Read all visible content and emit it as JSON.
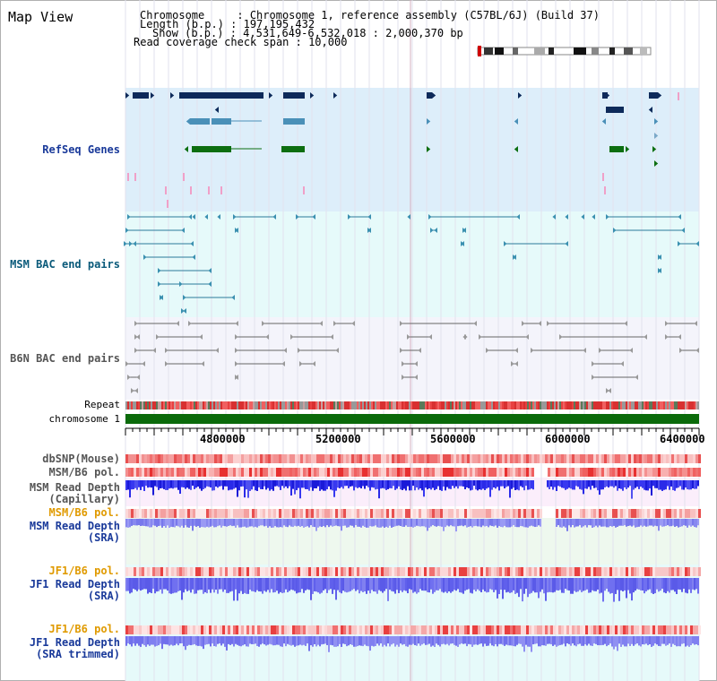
{
  "title": "Map View",
  "info": {
    "line1": "Chromosome     : Chromosome 1, reference assembly (C57BL/6J) (Build 37)",
    "line2": "Length (b.p.) : 197,195,432",
    "line3": "Show (b.p.) : 4,531,649-6,532,018 : 2,000,370 bp",
    "line4": "Read coverage check span : 10,000"
  },
  "tracks": {
    "refseq": "RefSeq Genes",
    "msm_bac": "MSM BAC end pairs",
    "b6n_bac": "B6N BAC end pairs",
    "repeat": "Repeat",
    "chromosome": "chromosome 1",
    "dbsnp": "dbSNP(Mouse)",
    "msm_pol1": "MSM/B6 pol.",
    "msm_depth_cap_1": "MSM Read Depth",
    "msm_depth_cap_2": "(Capillary)",
    "msm_pol2": "MSM/B6 pol.",
    "msm_depth_sra_1": "MSM Read Depth",
    "msm_depth_sra_2": "(SRA)",
    "jf1_pol1": "JF1/B6 pol.",
    "jf1_depth_sra_1": "JF1 Read Depth",
    "jf1_depth_sra_2": "(SRA)",
    "jf1_pol2": "JF1/B6 pol.",
    "jf1_depth_trim_1": "JF1 Read Depth",
    "jf1_depth_trim_2": "(SRA trimmed)"
  },
  "ruler": {
    "ticks": [
      "4800000",
      "5200000",
      "5600000",
      "6000000",
      "6400000"
    ]
  },
  "colors": {
    "refseq_band": "#ddeefa",
    "msm_band": "#e6fafa",
    "gene_navy": "#0d2a5a",
    "gene_teal": "#4a90b8",
    "gene_green": "#0c6e10",
    "chromosome_bar": "#0a6a0a",
    "pol_red": "#e83838",
    "depth_blue": "#2a2ae8",
    "label_blue": "#1a3a9a",
    "label_orange": "#e09a00"
  }
}
